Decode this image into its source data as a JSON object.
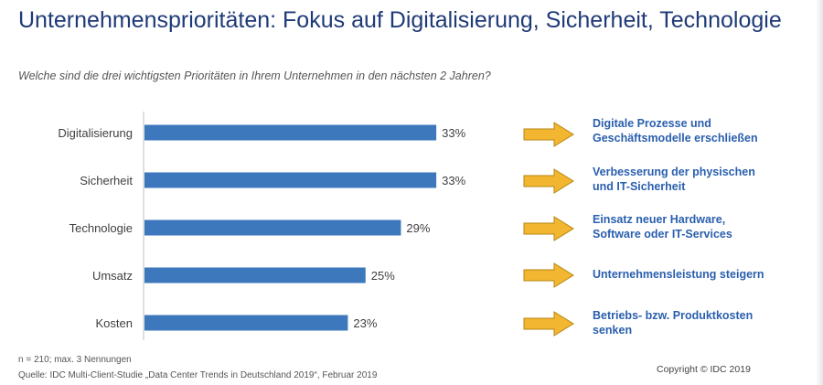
{
  "title": "Unternehmensprioritäten: Fokus auf Digitalisierung, Sicherheit, Technologie",
  "subtitle": "Welche sind die drei wichtigsten Prioritäten in Ihrem Unternehmen in den nächsten 2 Jahren?",
  "chart_data": {
    "type": "bar",
    "orientation": "horizontal",
    "categories": [
      "Digitalisierung",
      "Sicherheit",
      "Technologie",
      "Umsatz",
      "Kosten"
    ],
    "values": [
      33,
      33,
      29,
      25,
      23
    ],
    "value_labels": [
      "33%",
      "33%",
      "29%",
      "25%",
      "23%"
    ],
    "unit": "%",
    "bar_color": "#3d78bd",
    "grid": false
  },
  "callouts": [
    {
      "line1": "Digitale Prozesse und",
      "line2": "Geschäftsmodelle erschließen"
    },
    {
      "line1": "Verbesserung der physischen",
      "line2": "und IT-Sicherheit"
    },
    {
      "line1": "Einsatz neuer Hardware,",
      "line2": "Software oder IT-Services"
    },
    {
      "line1": "Unternehmensleistung steigern",
      "line2": ""
    },
    {
      "line1": "Betriebs- bzw. Produktkosten",
      "line2": "senken"
    }
  ],
  "arrow_color": "#f2b630",
  "footnote": "n = 210; max. 3 Nennungen",
  "source": "Quelle: IDC Multi-Client-Studie „Data Center Trends in Deutschland 2019“, Februar 2019",
  "copyright": "Copyright © IDC 2019"
}
